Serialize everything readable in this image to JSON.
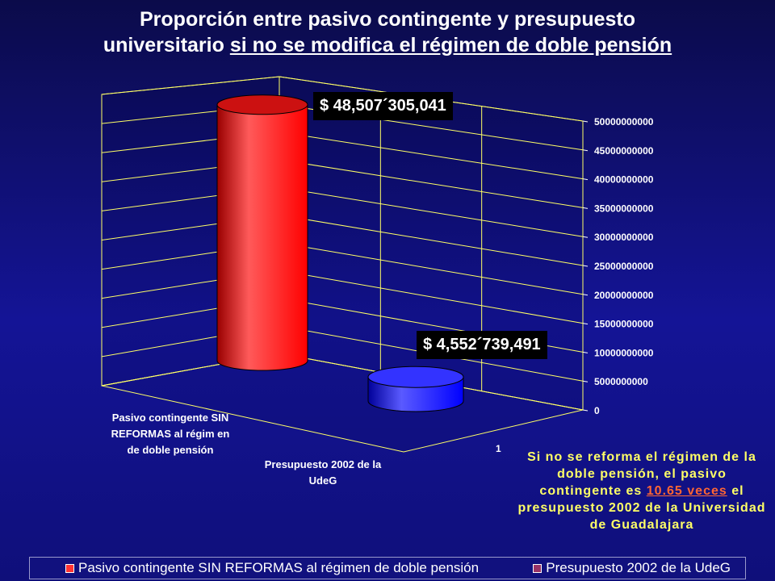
{
  "title": {
    "line1": "Proporción entre pasivo contingente y presupuesto",
    "line2_plain": "universitario ",
    "line2_underlined": "si no se modifica el régimen de doble pensión"
  },
  "chart_data": {
    "type": "bar",
    "style": "3d-cylinder",
    "categories": [
      "Pasivo contingente SIN REFORMAS al régimen de doble pensión",
      "Presupuesto 2002 de la UdeG"
    ],
    "depth_category_label": "1",
    "values": [
      48507305041,
      4552739491
    ],
    "data_labels": [
      "$ 48,507´305,041",
      "$ 4,552´739,491"
    ],
    "ylim": [
      0,
      50000000000
    ],
    "yticks": [
      0,
      5000000000,
      10000000000,
      15000000000,
      20000000000,
      25000000000,
      30000000000,
      35000000000,
      40000000000,
      45000000000,
      50000000000
    ],
    "colors": [
      "#ff0000",
      "#0000ff"
    ],
    "legend": [
      "Pasivo contingente SIN REFORMAS al régimen de doble pensión",
      "Presupuesto 2002 de la UdeG"
    ],
    "legend_swatch_colors": [
      "#ff3333",
      "#993366"
    ],
    "legend_position": "bottom",
    "grid": true,
    "grid_color": "#ffff66"
  },
  "axis_labels": {
    "cat1_lines": [
      "Pasivo contingente SIN",
      "REFORMAS al régim en",
      "de doble pensión"
    ],
    "cat2_lines": [
      "Presupuesto 2002 de la",
      "UdeG"
    ]
  },
  "note": {
    "before": "Si no se reforma el régimen de la doble pensión, el pasivo contingente es ",
    "highlight": "10.65 veces",
    "after": " el presupuesto 2002 de la Universidad de Guadalajara"
  }
}
